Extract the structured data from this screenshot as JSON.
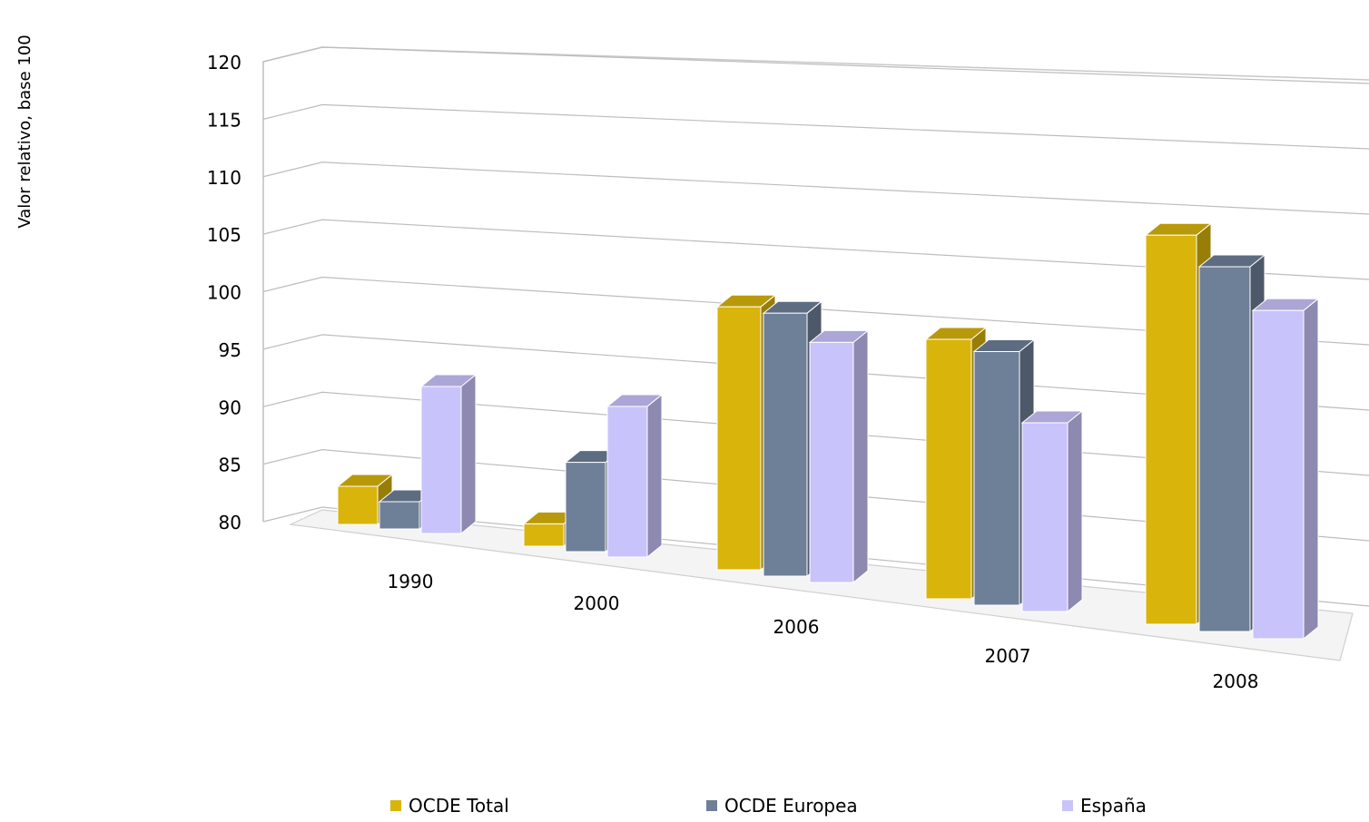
{
  "chart_data": {
    "type": "bar",
    "categories": [
      "1990",
      "2000",
      "2006",
      "2007",
      "2008"
    ],
    "series": [
      {
        "name": "OCDE Total",
        "values": [
          83.5,
          82.0,
          103.0,
          102.0,
          112.0
        ],
        "color": "#d9b40a"
      },
      {
        "name": "OCDE Europea",
        "values": [
          82.5,
          88.0,
          103.0,
          101.5,
          110.0
        ],
        "color": "#6e7f98"
      },
      {
        "name": "España",
        "values": [
          93.5,
          93.5,
          101.0,
          96.0,
          107.0
        ],
        "color": "#c9c3fb"
      }
    ],
    "ylabel": "Valor relativo, base 100",
    "ylim": [
      80,
      120
    ],
    "yticks": [
      80,
      85,
      90,
      95,
      100,
      105,
      110,
      115,
      120
    ],
    "grid": true,
    "legend": "bottom",
    "style": "3d"
  }
}
